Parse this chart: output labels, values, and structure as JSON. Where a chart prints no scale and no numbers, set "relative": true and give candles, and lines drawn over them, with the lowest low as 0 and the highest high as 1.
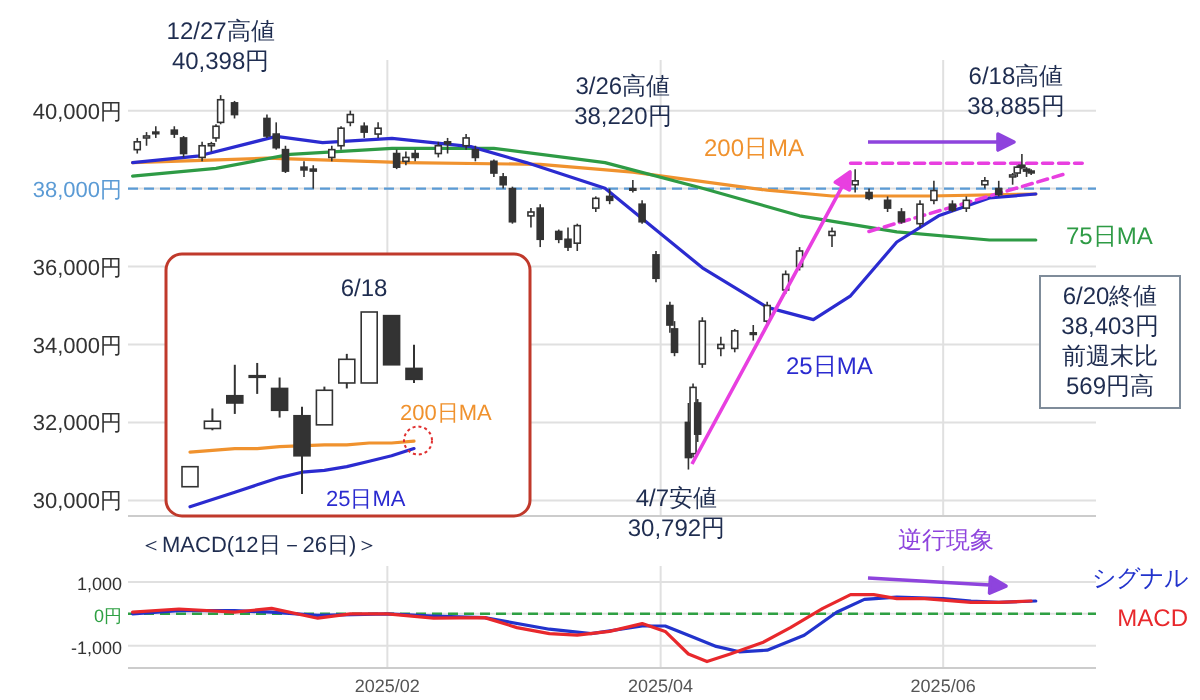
{
  "chart_data": [
    {
      "type": "candlestick",
      "xlim": [
        "2024-12-07",
        "2025-07-04"
      ],
      "xticks": [
        {
          "value": "2025-02-01",
          "label": null
        },
        {
          "value": "2025-04-01",
          "label": null
        },
        {
          "value": "2025-06-01",
          "label": null
        }
      ],
      "ylim": [
        29600,
        41300
      ],
      "yticks": [
        {
          "value": 30000,
          "label": "30,000円"
        },
        {
          "value": 32000,
          "label": "32,000円"
        },
        {
          "value": 34000,
          "label": "34,000円"
        },
        {
          "value": 36000,
          "label": "36,000円"
        },
        {
          "value": 38000,
          "label": "38,000円"
        },
        {
          "value": 40000,
          "label": "40,000円"
        }
      ],
      "tick_labels": "y",
      "grid": true,
      "x": [
        "2024-12-09",
        "2024-12-11",
        "2024-12-13",
        "2024-12-17",
        "2024-12-19",
        "2024-12-23",
        "2024-12-25",
        "2024-12-26",
        "2024-12-27",
        "2024-12-30",
        "2025-01-06",
        "2025-01-08",
        "2025-01-10",
        "2025-01-14",
        "2025-01-16",
        "2025-01-20",
        "2025-01-22",
        "2025-01-24",
        "2025-01-27",
        "2025-01-30",
        "2025-02-03",
        "2025-02-05",
        "2025-02-07",
        "2025-02-12",
        "2025-02-14",
        "2025-02-18",
        "2025-02-20",
        "2025-02-24",
        "2025-02-26",
        "2025-02-28",
        "2025-03-04",
        "2025-03-06",
        "2025-03-10",
        "2025-03-12",
        "2025-03-14",
        "2025-03-18",
        "2025-03-21",
        "2025-03-26",
        "2025-03-28",
        "2025-03-31",
        "2025-04-03",
        "2025-04-04",
        "2025-04-07",
        "2025-04-08",
        "2025-04-09",
        "2025-04-10",
        "2025-04-14",
        "2025-04-17",
        "2025-04-21",
        "2025-04-24",
        "2025-04-28",
        "2025-05-01",
        "2025-05-08",
        "2025-05-13",
        "2025-05-16",
        "2025-05-20",
        "2025-05-23",
        "2025-05-27",
        "2025-05-30",
        "2025-06-03",
        "2025-06-06",
        "2025-06-10",
        "2025-06-13",
        "2025-06-16",
        "2025-06-17",
        "2025-06-18",
        "2025-06-19",
        "2025-06-20"
      ],
      "ohlc": [
        [
          39000,
          39300,
          38900,
          39200
        ],
        [
          39300,
          39450,
          39100,
          39350
        ],
        [
          39450,
          39600,
          39300,
          39450
        ],
        [
          39500,
          39600,
          39300,
          39400
        ],
        [
          39300,
          39350,
          38800,
          38900
        ],
        [
          38800,
          39200,
          38700,
          39100
        ],
        [
          39100,
          39200,
          38950,
          39150
        ],
        [
          39300,
          39650,
          39200,
          39600
        ],
        [
          39700,
          40398,
          39650,
          40280
        ],
        [
          40200,
          40250,
          39800,
          39900
        ],
        [
          39800,
          39900,
          39300,
          39350
        ],
        [
          39400,
          39700,
          39000,
          39050
        ],
        [
          39000,
          39100,
          38400,
          38450
        ],
        [
          38550,
          38700,
          38300,
          38480
        ],
        [
          38500,
          38600,
          38000,
          38450
        ],
        [
          38800,
          39100,
          38700,
          39000
        ],
        [
          39100,
          39600,
          39000,
          39550
        ],
        [
          39700,
          40000,
          39600,
          39900
        ],
        [
          39600,
          39700,
          39300,
          39450
        ],
        [
          39400,
          39700,
          39300,
          39550
        ],
        [
          38900,
          39000,
          38500,
          38550
        ],
        [
          38700,
          38950,
          38600,
          38800
        ],
        [
          38900,
          39000,
          38700,
          38800
        ],
        [
          38900,
          39200,
          38800,
          39100
        ],
        [
          39200,
          39300,
          38900,
          39150
        ],
        [
          39100,
          39400,
          39000,
          39300
        ],
        [
          39000,
          39100,
          38700,
          38800
        ],
        [
          38700,
          38750,
          38300,
          38400
        ],
        [
          38300,
          38400,
          38000,
          38100
        ],
        [
          38000,
          38050,
          37100,
          37150
        ],
        [
          37300,
          37500,
          37000,
          37400
        ],
        [
          37500,
          37600,
          36500,
          36700
        ],
        [
          36900,
          36950,
          36600,
          36700
        ],
        [
          36700,
          37000,
          36400,
          36500
        ],
        [
          36600,
          37100,
          36400,
          37050
        ],
        [
          37500,
          37800,
          37400,
          37750
        ],
        [
          37800,
          38000,
          37600,
          37700
        ],
        [
          38000,
          38220,
          37900,
          38000
        ],
        [
          37600,
          37700,
          37100,
          37150
        ],
        [
          36300,
          36400,
          35600,
          35700
        ],
        [
          35000,
          35100,
          34300,
          34500
        ],
        [
          34400,
          34600,
          33700,
          33800
        ],
        [
          32000,
          32500,
          30792,
          31100
        ],
        [
          31200,
          33000,
          31100,
          32900
        ],
        [
          32500,
          32600,
          31500,
          31700
        ],
        [
          33500,
          34700,
          33400,
          34600
        ],
        [
          33900,
          34200,
          33700,
          34000
        ],
        [
          33900,
          34400,
          33800,
          34350
        ],
        [
          34300,
          34500,
          34100,
          34300
        ],
        [
          34600,
          35100,
          34500,
          35000
        ],
        [
          35400,
          35900,
          35300,
          35800
        ],
        [
          36000,
          36500,
          35900,
          36400
        ],
        [
          36800,
          37000,
          36500,
          36900
        ],
        [
          38100,
          38500,
          37900,
          38200
        ],
        [
          37900,
          38000,
          37700,
          37750
        ],
        [
          37700,
          37800,
          37400,
          37500
        ],
        [
          37400,
          37500,
          37100,
          37150
        ],
        [
          37100,
          37700,
          37000,
          37600
        ],
        [
          37700,
          38200,
          37600,
          37950
        ],
        [
          37600,
          37700,
          37400,
          37450
        ],
        [
          37500,
          37800,
          37400,
          37700
        ],
        [
          38100,
          38300,
          38000,
          38200
        ],
        [
          38000,
          38200,
          37800,
          37850
        ],
        [
          38300,
          38400,
          38100,
          38350
        ],
        [
          38400,
          38600,
          38300,
          38550
        ],
        [
          38600,
          38885,
          38500,
          38550
        ],
        [
          38500,
          38550,
          38300,
          38450
        ],
        [
          38450,
          38500,
          38350,
          38403
        ]
      ],
      "series": [
        {
          "type": "line",
          "name": "200日MA",
          "color": "#f0922e",
          "x": [
            "2024-12-08",
            "2025-01-06",
            "2025-02-05",
            "2025-03-06",
            "2025-03-26",
            "2025-04-24",
            "2025-05-08",
            "2025-05-29",
            "2025-06-21"
          ],
          "values": [
            38670,
            38780,
            38670,
            38620,
            38420,
            37960,
            37810,
            37810,
            37860
          ]
        },
        {
          "type": "line",
          "name": "75日MA",
          "color": "#2e9b45",
          "x": [
            "2024-12-08",
            "2024-12-26",
            "2025-01-11",
            "2025-02-02",
            "2025-02-24",
            "2025-03-20",
            "2025-04-10",
            "2025-05-01",
            "2025-05-22",
            "2025-06-11",
            "2025-06-21"
          ],
          "values": [
            38320,
            38520,
            38880,
            39030,
            39030,
            38670,
            38010,
            37300,
            36890,
            36680,
            36680
          ]
        },
        {
          "type": "line",
          "name": "25日MA",
          "color": "#2b2bd0",
          "x": [
            "2024-12-08",
            "2024-12-22",
            "2025-01-08",
            "2025-01-18",
            "2025-02-02",
            "2025-02-19",
            "2025-03-03",
            "2025-03-20",
            "2025-04-10",
            "2025-04-24",
            "2025-05-04",
            "2025-05-12",
            "2025-05-22",
            "2025-05-31",
            "2025-06-11",
            "2025-06-21"
          ],
          "values": [
            38670,
            38830,
            39340,
            39180,
            39290,
            39080,
            38670,
            38010,
            35970,
            34950,
            34640,
            35250,
            36630,
            37300,
            37760,
            37860
          ]
        },
        {
          "type": "line",
          "color": "#e83fe0",
          "line_style": "dashed",
          "x": [
            "2025-05-12",
            "2025-07-01"
          ],
          "values": [
            38650,
            38650
          ]
        },
        {
          "type": "line",
          "color": "#e83fe0",
          "line_style": "dashed",
          "x": [
            "2025-05-16",
            "2025-06-28"
          ],
          "values": [
            36900,
            38400
          ]
        }
      ],
      "ref_lines": [
        {
          "axis": "y",
          "value": 38000,
          "color": "#5b9bd5",
          "line_style": "dashed"
        }
      ],
      "annotations": [
        {
          "text": "12/27高値\n40,398円",
          "x": "2024-12-27",
          "y": 40398
        },
        {
          "text": "3/26高値\n38,220円",
          "x": "2025-03-26",
          "y": 38220
        },
        {
          "text": "6/18高値\n38,885円",
          "x": "2025-06-18",
          "y": 38885
        },
        {
          "text": "4/7安値\n30,792円",
          "x": "2025-04-07",
          "y": 30792
        },
        "6/20終値",
        "38,403円",
        "前週末比",
        "569円高"
      ]
    },
    {
      "type": "candlestick",
      "relative": true,
      "categories": [
        null,
        null,
        null,
        null,
        null,
        null,
        null,
        null,
        null,
        null,
        null
      ],
      "ohlc": [
        [
          0.04,
          0.15,
          0.04,
          0.15
        ],
        [
          0.36,
          0.47,
          0.35,
          0.4
        ],
        [
          0.54,
          0.71,
          0.44,
          0.5
        ],
        [
          0.65,
          0.72,
          0.55,
          0.65
        ],
        [
          0.58,
          0.64,
          0.42,
          0.46
        ],
        [
          0.43,
          0.48,
          0,
          0.21
        ],
        [
          0.38,
          0.59,
          0.38,
          0.57
        ],
        [
          0.61,
          0.77,
          0.58,
          0.74
        ],
        [
          0.61,
          1,
          0.61,
          1
        ],
        [
          0.98,
          0.98,
          0.71,
          0.71
        ],
        [
          0.69,
          0.82,
          0.61,
          0.63
        ]
      ],
      "series": [
        {
          "type": "line",
          "name": "200日MA",
          "color": "#f0922e",
          "values": [
            0.23,
            0.24,
            0.25,
            0.25,
            0.26,
            null,
            0.27,
            0.27,
            0.28,
            0.28,
            0.29
          ]
        },
        {
          "type": "line",
          "name": "25日MA",
          "color": "#2b2bd0",
          "values": [
            -0.07,
            -0.03,
            0.01,
            0.05,
            0.09,
            0.12,
            0.13,
            0.15,
            0.18,
            0.21,
            0.25
          ]
        }
      ],
      "annotations": [
        "6/18"
      ]
    },
    {
      "type": "line",
      "title": "＜MACD(12日－26日)＞",
      "xlim": [
        "2024-12-07",
        "2025-07-04"
      ],
      "xticks": [
        {
          "value": "2025-02-01",
          "label": "2025/02"
        },
        {
          "value": "2025-04-01",
          "label": "2025/04"
        },
        {
          "value": "2025-06-01",
          "label": "2025/06"
        }
      ],
      "ylim": [
        -1700,
        1500
      ],
      "yticks": [
        {
          "value": -1000,
          "label": "-1,000"
        },
        {
          "value": 0,
          "label": "0円"
        },
        {
          "value": 1000,
          "label": "1,000"
        }
      ],
      "grid": true,
      "series": [
        {
          "name": "シグナル",
          "color": "#2233cc",
          "x": [
            "2024-12-08",
            "2024-12-18",
            "2024-12-30",
            "2025-01-07",
            "2025-01-17",
            "2025-02-01",
            "2025-02-11",
            "2025-02-22",
            "2025-03-08",
            "2025-03-17",
            "2025-03-28",
            "2025-04-02",
            "2025-04-07",
            "2025-04-13",
            "2025-04-18",
            "2025-04-24",
            "2025-05-02",
            "2025-05-09",
            "2025-05-15",
            "2025-05-22",
            "2025-06-01",
            "2025-06-07",
            "2025-06-13",
            "2025-06-21"
          ],
          "values": [
            0,
            100,
            100,
            50,
            -50,
            0,
            -70,
            -120,
            -480,
            -620,
            -380,
            -380,
            -670,
            -1020,
            -1190,
            -1140,
            -670,
            50,
            450,
            520,
            480,
            400,
            360,
            400
          ]
        },
        {
          "name": "MACD",
          "color": "#e8282c",
          "x": [
            "2024-12-08",
            "2024-12-18",
            "2024-12-30",
            "2025-01-07",
            "2025-01-17",
            "2025-01-24",
            "2025-02-01",
            "2025-02-11",
            "2025-02-22",
            "2025-03-01",
            "2025-03-08",
            "2025-03-14",
            "2025-03-21",
            "2025-03-28",
            "2025-04-02",
            "2025-04-07",
            "2025-04-11",
            "2025-04-16",
            "2025-04-23",
            "2025-04-29",
            "2025-05-06",
            "2025-05-12",
            "2025-05-17",
            "2025-05-22",
            "2025-05-28",
            "2025-06-07",
            "2025-06-13",
            "2025-06-20"
          ],
          "values": [
            50,
            150,
            50,
            170,
            -140,
            0,
            0,
            -140,
            -120,
            -430,
            -620,
            -670,
            -550,
            -310,
            -550,
            -1260,
            -1500,
            -1260,
            -900,
            -430,
            170,
            600,
            600,
            480,
            480,
            360,
            360,
            400
          ]
        }
      ],
      "ref_lines": [
        {
          "axis": "y",
          "value": 0,
          "color": "#2ea043",
          "line_style": "dashed"
        }
      ],
      "annotations": [
        "逆行現象"
      ]
    }
  ]
}
